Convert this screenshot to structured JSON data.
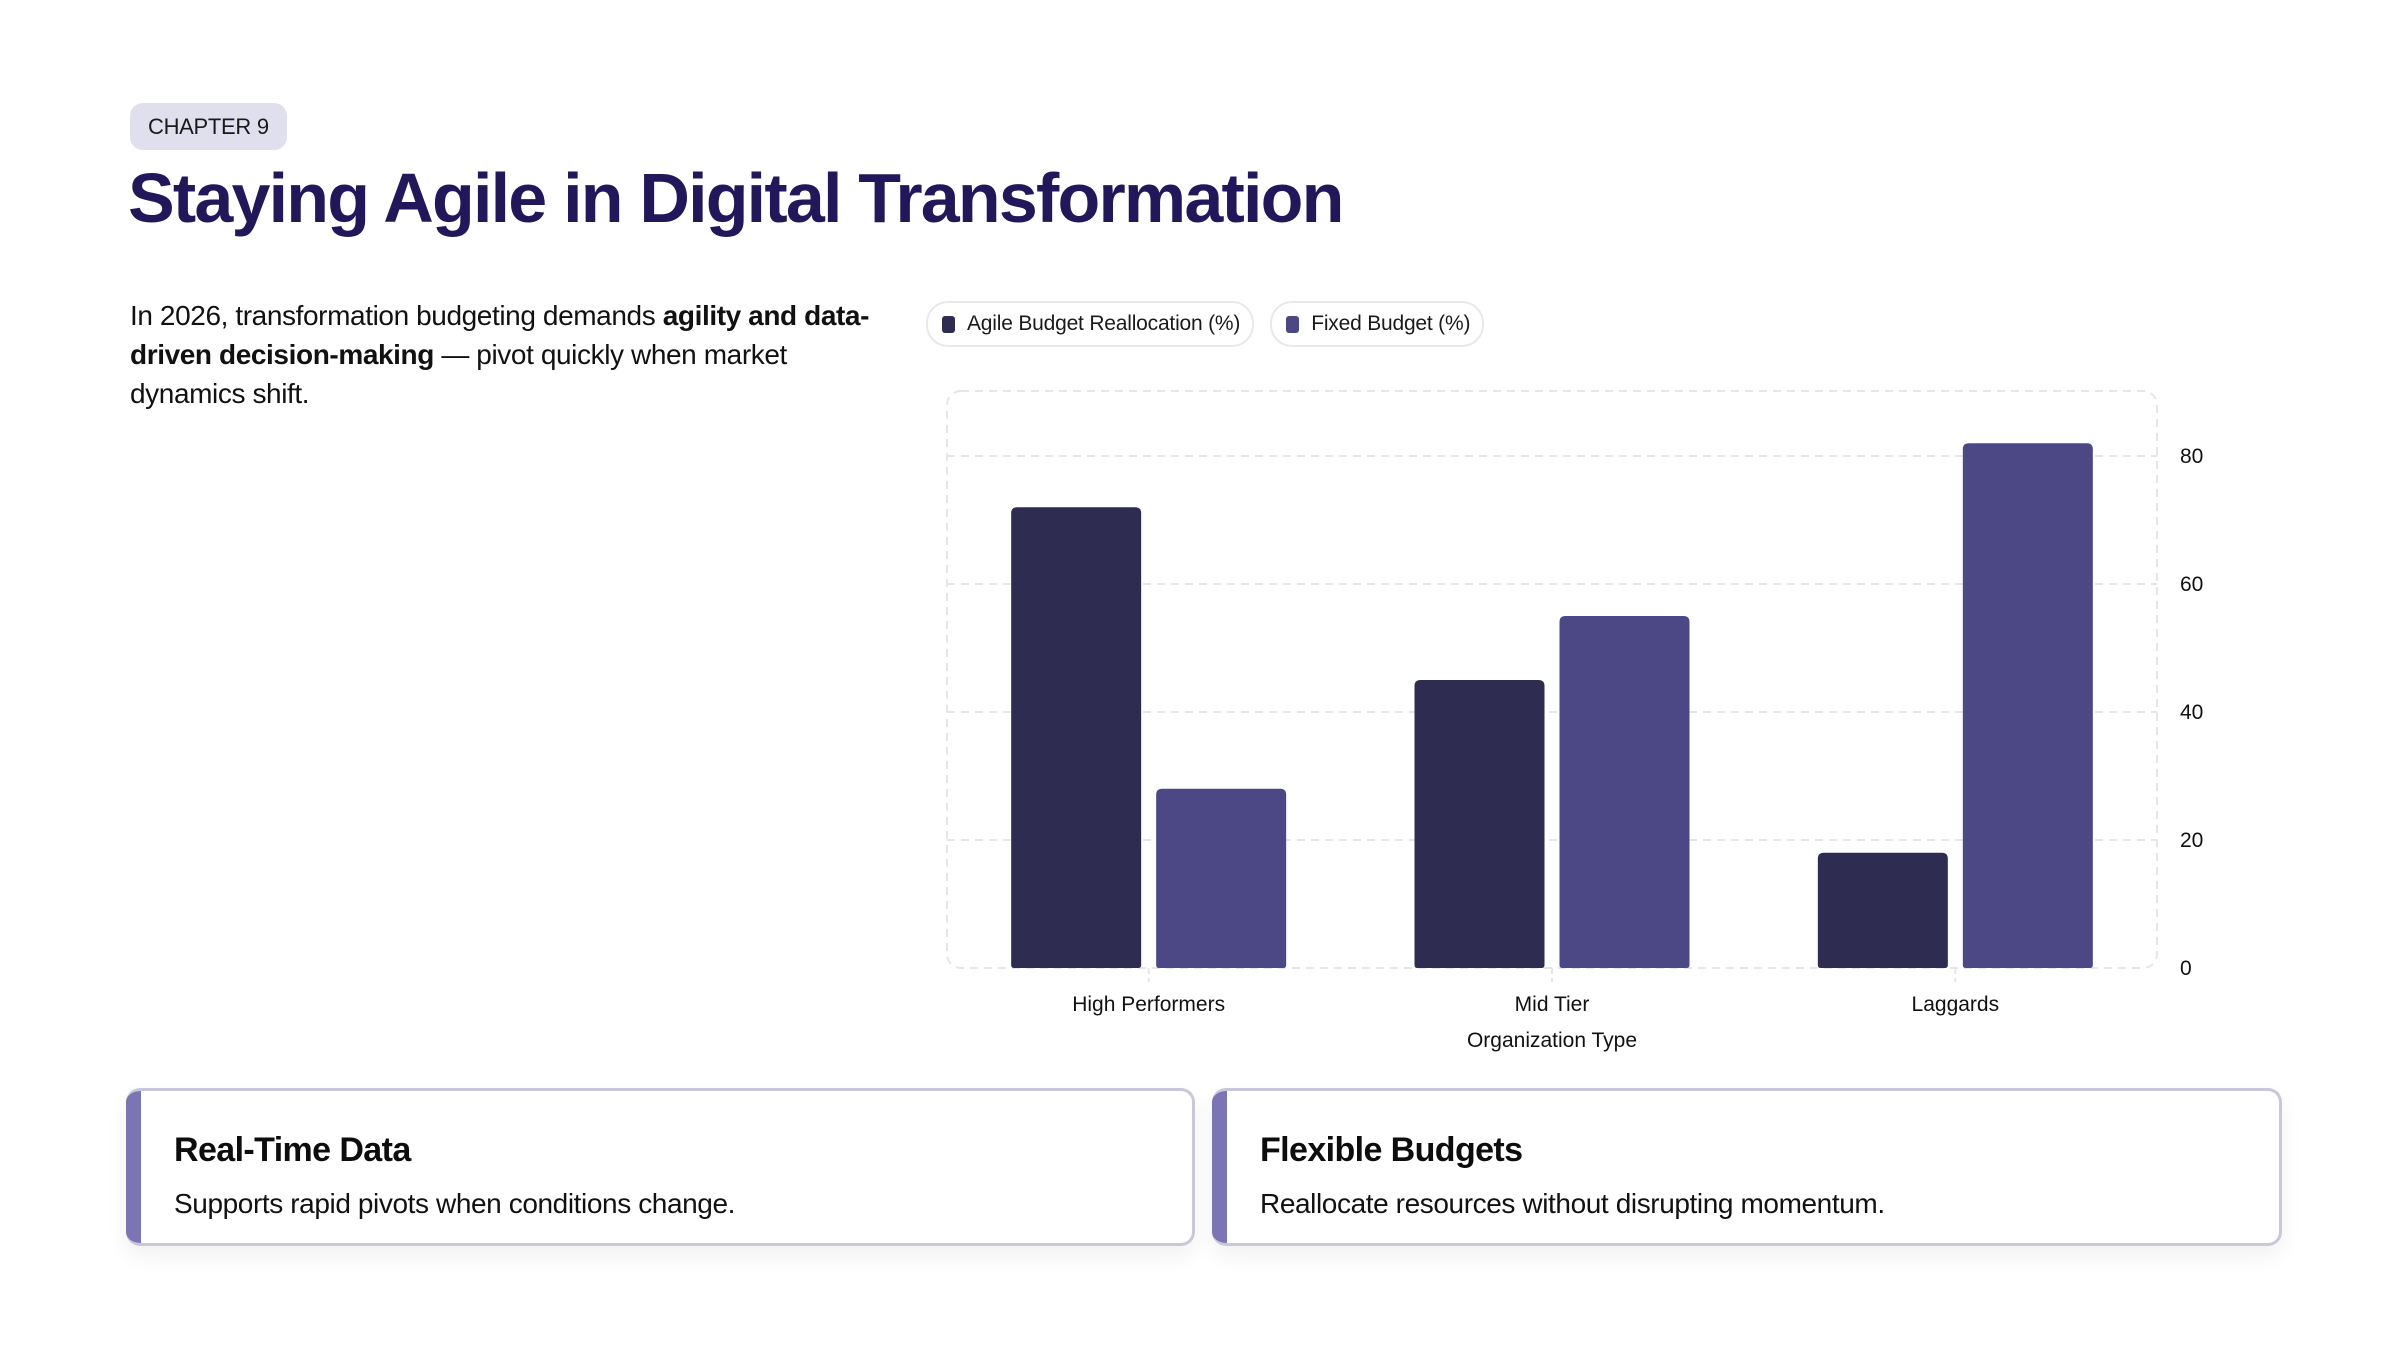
{
  "badge": "CHAPTER 9",
  "title": "Staying Agile in Digital Transformation",
  "intro": {
    "part1": "In 2026, transformation budgeting demands ",
    "bold": "agility and data-driven decision-making",
    "part2": " — pivot quickly when market dynamics shift."
  },
  "chart_data": {
    "type": "bar",
    "title": "",
    "xlabel": "Organization Type",
    "ylabel": "",
    "categories": [
      "High Performers",
      "Mid Tier",
      "Laggards"
    ],
    "series": [
      {
        "name": "Agile Budget Reallocation (%)",
        "color": "#2f2c52",
        "values": [
          72,
          45,
          18
        ]
      },
      {
        "name": "Fixed Budget (%)",
        "color": "#4c4885",
        "values": [
          28,
          55,
          82
        ]
      }
    ],
    "ylim": [
      0,
      80
    ],
    "yticks": [
      0,
      20,
      40,
      60,
      80
    ],
    "y_axis_side": "right",
    "grid": true,
    "legend_position": "top-left"
  },
  "cards": [
    {
      "title": "Real-Time Data",
      "body": "Supports rapid pivots when conditions change."
    },
    {
      "title": "Flexible Budgets",
      "body": "Reallocate resources without disrupting momentum."
    }
  ],
  "colors": {
    "title": "#22175a",
    "badge_bg": "#e0dfee",
    "card_accent": "#7b74b5",
    "card_border": "#c9c7da"
  }
}
